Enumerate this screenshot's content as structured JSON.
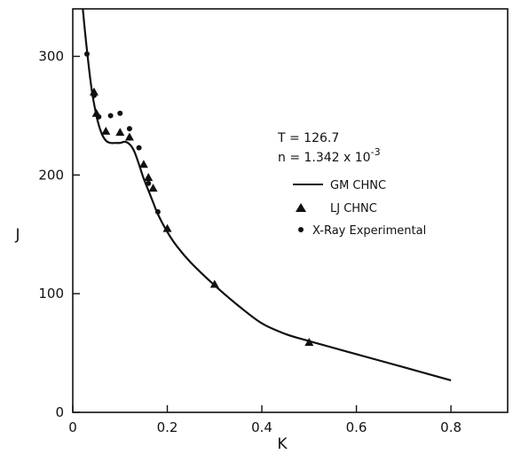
{
  "chart_data": {
    "type": "line",
    "xlabel": "K",
    "ylabel": "J",
    "xlim": [
      0,
      0.92
    ],
    "ylim": [
      0,
      340
    ],
    "xticks": [
      0,
      0.2,
      0.4,
      0.6,
      0.8
    ],
    "xtick_labels": [
      "0",
      "0.2",
      "0.4",
      "0.6",
      "0.8"
    ],
    "yticks": [
      0,
      100,
      200,
      300
    ],
    "ytick_labels": [
      "0",
      "100",
      "200",
      "300"
    ],
    "grid": false,
    "annotations": {
      "temperature": "T = 126.7",
      "density_prefix": "n = 1.342 x 10",
      "density_exponent": "-3"
    },
    "legend_position": "upper-right",
    "series": [
      {
        "name": "GM CHNC",
        "style": "solid-line",
        "x": [
          0.02,
          0.03,
          0.04,
          0.05,
          0.06,
          0.07,
          0.08,
          0.09,
          0.1,
          0.11,
          0.12,
          0.13,
          0.14,
          0.15,
          0.16,
          0.17,
          0.18,
          0.2,
          0.22,
          0.25,
          0.3,
          0.35,
          0.4,
          0.45,
          0.5,
          0.6,
          0.7,
          0.8
        ],
        "y": [
          345,
          305,
          272,
          250,
          236,
          229,
          227,
          227,
          227,
          228,
          226,
          220,
          209,
          197,
          187,
          177,
          167,
          152,
          140,
          126,
          107,
          90,
          75,
          66,
          60,
          49,
          38,
          27
        ]
      },
      {
        "name": "LJ CHNC",
        "style": "triangle",
        "x": [
          0.045,
          0.05,
          0.07,
          0.1,
          0.12,
          0.15,
          0.16,
          0.17,
          0.2,
          0.3,
          0.5
        ],
        "y": [
          270,
          252,
          237,
          236,
          232,
          209,
          198,
          189,
          155,
          108,
          59
        ]
      },
      {
        "name": "X-Ray Experimental",
        "style": "dot",
        "x": [
          0.03,
          0.045,
          0.055,
          0.08,
          0.1,
          0.12,
          0.14,
          0.16,
          0.18
        ],
        "y": [
          302,
          267,
          249,
          250,
          252,
          239,
          223,
          193,
          169
        ]
      }
    ]
  }
}
